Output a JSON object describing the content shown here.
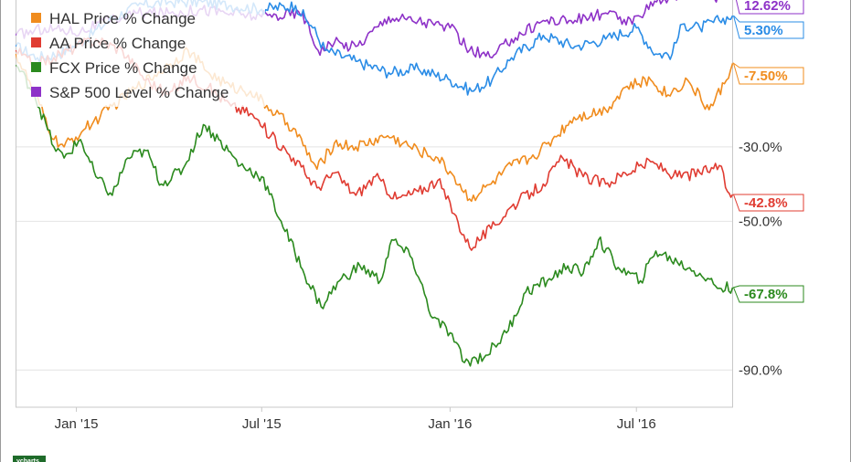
{
  "chart_data": {
    "type": "line",
    "title": "",
    "xlabel": "",
    "ylabel": "",
    "x_range": [
      "2014-11-03",
      "2016-10-03"
    ],
    "ylim": [
      -100,
      10
    ],
    "y_ticks": [
      {
        "value": -30,
        "label": "-30.0%"
      },
      {
        "value": -50,
        "label": "-50.0%"
      },
      {
        "value": -90,
        "label": "-90.0%"
      }
    ],
    "x_ticks": [
      {
        "date": "2015-01-01",
        "label": "Jan '15"
      },
      {
        "date": "2015-07-01",
        "label": "Jul '15"
      },
      {
        "date": "2016-01-01",
        "label": "Jan '16"
      },
      {
        "date": "2016-07-01",
        "label": "Jul '16"
      }
    ],
    "grid": "horizontal",
    "legend_position": "top-left",
    "series": [
      {
        "name": "",
        "color": "#2a8ce6",
        "end_label": "5.30%",
        "points": [
          [
            "2014-11-03",
            -3
          ],
          [
            "2014-11-24",
            -6
          ],
          [
            "2014-12-15",
            -5
          ],
          [
            "2015-01-05",
            -2
          ],
          [
            "2015-02-02",
            4
          ],
          [
            "2015-03-02",
            8
          ],
          [
            "2015-04-01",
            9
          ],
          [
            "2015-05-04",
            9
          ],
          [
            "2015-06-01",
            8
          ],
          [
            "2015-07-01",
            7
          ],
          [
            "2015-08-03",
            8
          ],
          [
            "2015-08-20",
            2
          ],
          [
            "2015-09-01",
            -4
          ],
          [
            "2015-10-01",
            -7
          ],
          [
            "2015-11-02",
            -10
          ],
          [
            "2015-12-01",
            -9
          ],
          [
            "2016-01-01",
            -12
          ],
          [
            "2016-01-22",
            -15
          ],
          [
            "2016-02-11",
            -12
          ],
          [
            "2016-03-01",
            -6
          ],
          [
            "2016-04-01",
            0
          ],
          [
            "2016-05-02",
            -3
          ],
          [
            "2016-06-01",
            -1
          ],
          [
            "2016-07-01",
            2
          ],
          [
            "2016-07-20",
            -5
          ],
          [
            "2016-08-05",
            -5
          ],
          [
            "2016-08-15",
            3
          ],
          [
            "2016-09-01",
            2
          ],
          [
            "2016-09-20",
            4
          ],
          [
            "2016-10-03",
            5.3
          ]
        ]
      },
      {
        "name": "HAL Price % Change",
        "color": "#f08c1e",
        "end_label": "-7.50%",
        "points": [
          [
            "2014-11-03",
            -5
          ],
          [
            "2014-11-20",
            -15
          ],
          [
            "2014-12-10",
            -28
          ],
          [
            "2014-12-20",
            -30
          ],
          [
            "2015-01-10",
            -25
          ],
          [
            "2015-02-01",
            -20
          ],
          [
            "2015-03-01",
            -14
          ],
          [
            "2015-04-01",
            -8
          ],
          [
            "2015-04-20",
            -4
          ],
          [
            "2015-05-10",
            -10
          ],
          [
            "2015-06-01",
            -14
          ],
          [
            "2015-06-20",
            -15
          ],
          [
            "2015-07-10",
            -20
          ],
          [
            "2015-08-01",
            -25
          ],
          [
            "2015-08-24",
            -36
          ],
          [
            "2015-09-10",
            -29
          ],
          [
            "2015-10-01",
            -30
          ],
          [
            "2015-11-01",
            -27
          ],
          [
            "2015-12-01",
            -31
          ],
          [
            "2015-12-20",
            -33
          ],
          [
            "2016-01-05",
            -38
          ],
          [
            "2016-01-20",
            -44
          ],
          [
            "2016-02-10",
            -40
          ],
          [
            "2016-03-01",
            -35
          ],
          [
            "2016-03-20",
            -33
          ],
          [
            "2016-04-10",
            -28
          ],
          [
            "2016-05-01",
            -22
          ],
          [
            "2016-06-01",
            -20
          ],
          [
            "2016-06-20",
            -14
          ],
          [
            "2016-07-15",
            -12
          ],
          [
            "2016-08-01",
            -16
          ],
          [
            "2016-08-20",
            -12
          ],
          [
            "2016-09-10",
            -20
          ],
          [
            "2016-09-25",
            -13
          ],
          [
            "2016-10-03",
            -7.5
          ]
        ]
      },
      {
        "name": "AA Price % Change",
        "color": "#e03c32",
        "end_label": "-42.8%",
        "points": [
          [
            "2014-11-03",
            -4
          ],
          [
            "2014-11-20",
            -8
          ],
          [
            "2014-12-10",
            -6
          ],
          [
            "2015-01-01",
            -3
          ],
          [
            "2015-01-20",
            -1
          ],
          [
            "2015-02-15",
            -4
          ],
          [
            "2015-03-10",
            -12
          ],
          [
            "2015-04-01",
            -16
          ],
          [
            "2015-04-20",
            -11
          ],
          [
            "2015-05-10",
            -14
          ],
          [
            "2015-06-01",
            -19
          ],
          [
            "2015-06-20",
            -21
          ],
          [
            "2015-07-10",
            -27
          ],
          [
            "2015-08-01",
            -33
          ],
          [
            "2015-08-24",
            -41
          ],
          [
            "2015-09-10",
            -37
          ],
          [
            "2015-10-01",
            -43
          ],
          [
            "2015-10-20",
            -38
          ],
          [
            "2015-11-10",
            -44
          ],
          [
            "2015-12-01",
            -42
          ],
          [
            "2015-12-20",
            -39
          ],
          [
            "2016-01-05",
            -48
          ],
          [
            "2016-01-20",
            -57
          ],
          [
            "2016-02-10",
            -52
          ],
          [
            "2016-03-01",
            -46
          ],
          [
            "2016-04-01",
            -40
          ],
          [
            "2016-04-20",
            -33
          ],
          [
            "2016-05-10",
            -38
          ],
          [
            "2016-06-01",
            -40
          ],
          [
            "2016-06-20",
            -37
          ],
          [
            "2016-07-15",
            -34
          ],
          [
            "2016-08-10",
            -38
          ],
          [
            "2016-09-01",
            -37
          ],
          [
            "2016-09-20",
            -35
          ],
          [
            "2016-09-28",
            -42
          ],
          [
            "2016-10-03",
            -42.8
          ]
        ]
      },
      {
        "name": "FCX Price % Change",
        "color": "#2b8a1e",
        "end_label": "-67.8%",
        "points": [
          [
            "2014-11-03",
            -8
          ],
          [
            "2014-11-20",
            -15
          ],
          [
            "2014-12-10",
            -30
          ],
          [
            "2014-12-20",
            -33
          ],
          [
            "2015-01-05",
            -28
          ],
          [
            "2015-01-20",
            -38
          ],
          [
            "2015-02-05",
            -43
          ],
          [
            "2015-02-20",
            -33
          ],
          [
            "2015-03-10",
            -31
          ],
          [
            "2015-03-25",
            -40
          ],
          [
            "2015-04-15",
            -36
          ],
          [
            "2015-05-05",
            -24
          ],
          [
            "2015-05-20",
            -28
          ],
          [
            "2015-06-10",
            -35
          ],
          [
            "2015-07-01",
            -38
          ],
          [
            "2015-07-20",
            -50
          ],
          [
            "2015-08-10",
            -63
          ],
          [
            "2015-08-28",
            -73
          ],
          [
            "2015-09-15",
            -66
          ],
          [
            "2015-10-05",
            -62
          ],
          [
            "2015-10-25",
            -66
          ],
          [
            "2015-11-05",
            -55
          ],
          [
            "2015-11-25",
            -60
          ],
          [
            "2015-12-15",
            -76
          ],
          [
            "2016-01-01",
            -80
          ],
          [
            "2016-01-15",
            -88
          ],
          [
            "2016-02-05",
            -86
          ],
          [
            "2016-02-25",
            -80
          ],
          [
            "2016-03-15",
            -69
          ],
          [
            "2016-04-05",
            -66
          ],
          [
            "2016-04-25",
            -62
          ],
          [
            "2016-05-10",
            -64
          ],
          [
            "2016-05-25",
            -55
          ],
          [
            "2016-06-15",
            -63
          ],
          [
            "2016-07-05",
            -66
          ],
          [
            "2016-07-20",
            -58
          ],
          [
            "2016-08-10",
            -61
          ],
          [
            "2016-09-01",
            -64
          ],
          [
            "2016-09-20",
            -68
          ],
          [
            "2016-10-03",
            -67.8
          ]
        ]
      },
      {
        "name": "S&P 500 Level % Change",
        "color": "#8e32c8",
        "end_label": "12.62%",
        "points": [
          [
            "2014-11-03",
            0
          ],
          [
            "2014-12-01",
            2
          ],
          [
            "2015-01-05",
            1
          ],
          [
            "2015-02-02",
            4
          ],
          [
            "2015-03-02",
            6
          ],
          [
            "2015-04-01",
            6
          ],
          [
            "2015-05-04",
            7
          ],
          [
            "2015-06-01",
            6
          ],
          [
            "2015-07-01",
            5
          ],
          [
            "2015-08-10",
            6
          ],
          [
            "2015-08-25",
            -4
          ],
          [
            "2015-09-10",
            -2
          ],
          [
            "2015-10-01",
            -3
          ],
          [
            "2015-11-02",
            5
          ],
          [
            "2015-12-01",
            4
          ],
          [
            "2016-01-01",
            2
          ],
          [
            "2016-01-20",
            -4
          ],
          [
            "2016-02-11",
            -6
          ],
          [
            "2016-03-01",
            -1
          ],
          [
            "2016-04-01",
            4
          ],
          [
            "2016-05-02",
            4
          ],
          [
            "2016-06-01",
            6
          ],
          [
            "2016-06-27",
            3
          ],
          [
            "2016-07-15",
            9
          ],
          [
            "2016-08-15",
            11
          ],
          [
            "2016-09-01",
            12
          ],
          [
            "2016-09-15",
            10
          ],
          [
            "2016-10-03",
            12.62
          ]
        ]
      }
    ]
  },
  "footer": {
    "logo_text": "ycharts"
  }
}
